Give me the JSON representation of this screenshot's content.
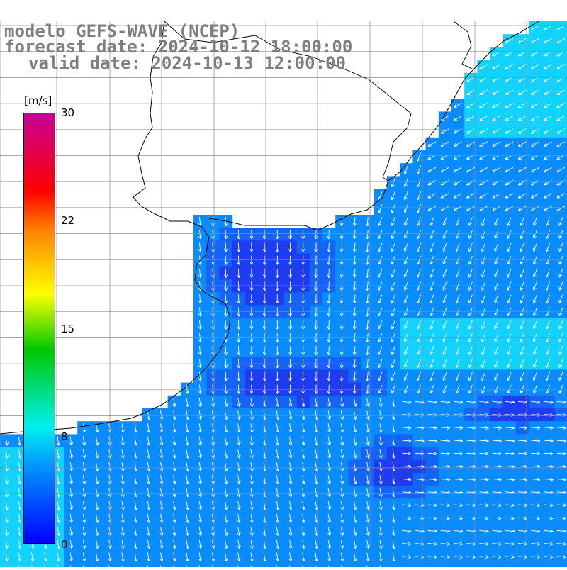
{
  "header": {
    "line1": "modelo GEFS-WAVE (NCEP)",
    "line2": "forecast date: 2024-10-12 18:00:00",
    "line3": "valid date: 2024-10-13 12:00:00"
  },
  "colorbar": {
    "units": "[m/s]",
    "ticks": [
      "30",
      "22",
      "15",
      "8",
      "0"
    ],
    "min": 0,
    "max": 30,
    "colors": [
      "#0000ff",
      "#0096ff",
      "#00f0f0",
      "#00c800",
      "#ffff00",
      "#ff8000",
      "#ff0000",
      "#c80096"
    ]
  },
  "map": {
    "land_color": "#ffffff",
    "grid_color": "#8c8c8c",
    "coast_color": "#000000",
    "vector_color": "#ffffff",
    "field_colors": {
      "low": "#1e3cf0",
      "mid": "#0a8cff",
      "high": "#14d2ff"
    }
  }
}
